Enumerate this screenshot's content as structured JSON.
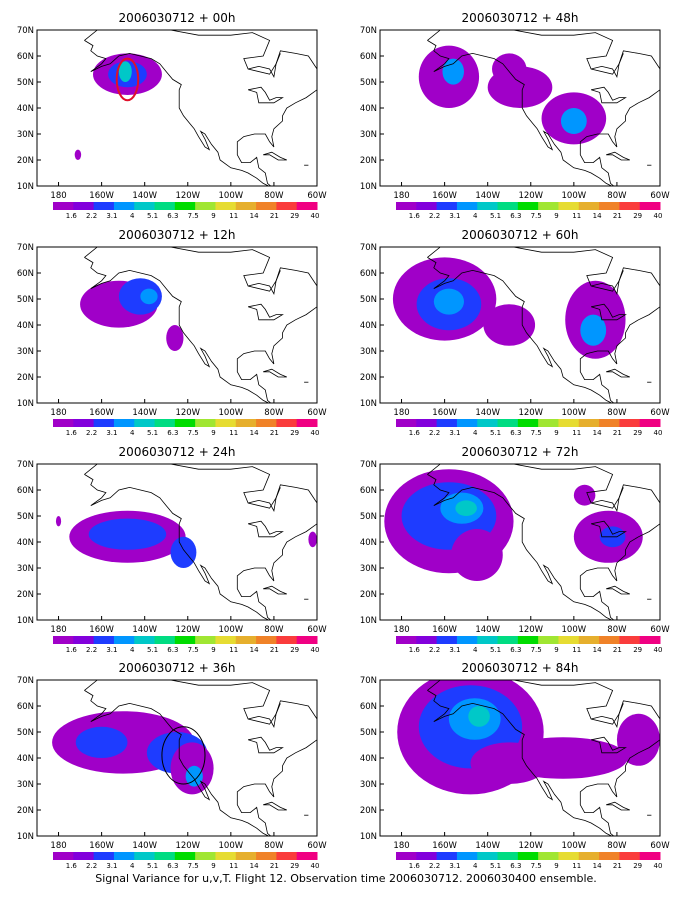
{
  "footer": "Signal Variance for u,v,T. Flight 12. Observation time 2006030712. 2006030400 ensemble.",
  "lat_labels": [
    "70N",
    "60N",
    "50N",
    "40N",
    "30N",
    "20N",
    "10N"
  ],
  "lon_labels": [
    "180",
    "160W",
    "140W",
    "120W",
    "100W",
    "80W",
    "60W"
  ],
  "colorbar": {
    "labels": [
      "1.6",
      "2.2",
      "3.1",
      "4",
      "5.1",
      "6.3",
      "7.5",
      "9",
      "11",
      "14",
      "21",
      "29",
      "40"
    ],
    "colors": [
      "#a000c8",
      "#8200dc",
      "#1e3cff",
      "#0096ff",
      "#00c8c8",
      "#00dc82",
      "#00dc00",
      "#a0e632",
      "#e6dc32",
      "#e6af2d",
      "#f08228",
      "#fa3c3c",
      "#f00082"
    ]
  },
  "panels": [
    {
      "title": "2006030712 + 00h",
      "blobs": [
        [
          -148,
          53,
          16,
          8,
          1
        ],
        [
          -148,
          53,
          9,
          5,
          2
        ],
        [
          -149,
          54,
          3,
          4,
          4
        ],
        [
          -171,
          22,
          1.5,
          2,
          1
        ]
      ],
      "contour": [
        -148,
        51,
        5,
        8
      ]
    },
    {
      "title": "2006030712 + 48h",
      "blobs": [
        [
          -158,
          52,
          14,
          12,
          1
        ],
        [
          -156,
          54,
          5,
          5,
          3
        ],
        [
          -125,
          48,
          15,
          8,
          1
        ],
        [
          -100,
          36,
          15,
          10,
          1
        ],
        [
          -100,
          35,
          6,
          5,
          3
        ],
        [
          -130,
          55,
          8,
          6,
          1
        ]
      ]
    },
    {
      "title": "2006030712 + 12h",
      "blobs": [
        [
          -152,
          48,
          18,
          9,
          1
        ],
        [
          -142,
          51,
          10,
          7,
          2
        ],
        [
          -138,
          51,
          4,
          3,
          3
        ],
        [
          -126,
          35,
          4,
          5,
          1
        ]
      ]
    },
    {
      "title": "2006030712 + 60h",
      "blobs": [
        [
          -160,
          50,
          24,
          16,
          1
        ],
        [
          -158,
          48,
          15,
          10,
          2
        ],
        [
          -158,
          49,
          7,
          5,
          3
        ],
        [
          -90,
          42,
          14,
          15,
          1
        ],
        [
          -91,
          38,
          6,
          6,
          3
        ],
        [
          -130,
          40,
          12,
          8,
          1
        ]
      ]
    },
    {
      "title": "2006030712 + 24h",
      "blobs": [
        [
          -148,
          42,
          27,
          10,
          1
        ],
        [
          -148,
          43,
          18,
          6,
          2
        ],
        [
          -122,
          36,
          6,
          6,
          2
        ],
        [
          -180,
          48,
          1.2,
          2,
          1
        ],
        [
          -62,
          41,
          2,
          3,
          1
        ]
      ]
    },
    {
      "title": "2006030712 + 72h",
      "blobs": [
        [
          -158,
          48,
          30,
          20,
          1
        ],
        [
          -158,
          50,
          22,
          13,
          2
        ],
        [
          -152,
          53,
          10,
          6,
          3
        ],
        [
          -150,
          53,
          5,
          3,
          4
        ],
        [
          -84,
          42,
          16,
          10,
          1
        ],
        [
          -82,
          42,
          6,
          4,
          2
        ],
        [
          -145,
          35,
          12,
          10,
          1
        ],
        [
          -95,
          58,
          5,
          4,
          1
        ]
      ]
    },
    {
      "title": "2006030712 + 36h",
      "blobs": [
        [
          -150,
          46,
          33,
          12,
          1
        ],
        [
          -125,
          42,
          14,
          8,
          2
        ],
        [
          -118,
          36,
          10,
          10,
          1
        ],
        [
          -117,
          33,
          4,
          4,
          3
        ],
        [
          -160,
          46,
          12,
          6,
          2
        ]
      ],
      "contour": [
        -122,
        41,
        10,
        11
      ]
    },
    {
      "title": "2006030712 + 84h",
      "blobs": [
        [
          -148,
          50,
          34,
          24,
          1
        ],
        [
          -148,
          52,
          24,
          16,
          2
        ],
        [
          -146,
          55,
          12,
          8,
          3
        ],
        [
          -144,
          56,
          5,
          4,
          4
        ],
        [
          -105,
          40,
          30,
          8,
          1
        ],
        [
          -70,
          47,
          10,
          10,
          1
        ],
        [
          -130,
          38,
          18,
          8,
          1
        ]
      ]
    }
  ]
}
